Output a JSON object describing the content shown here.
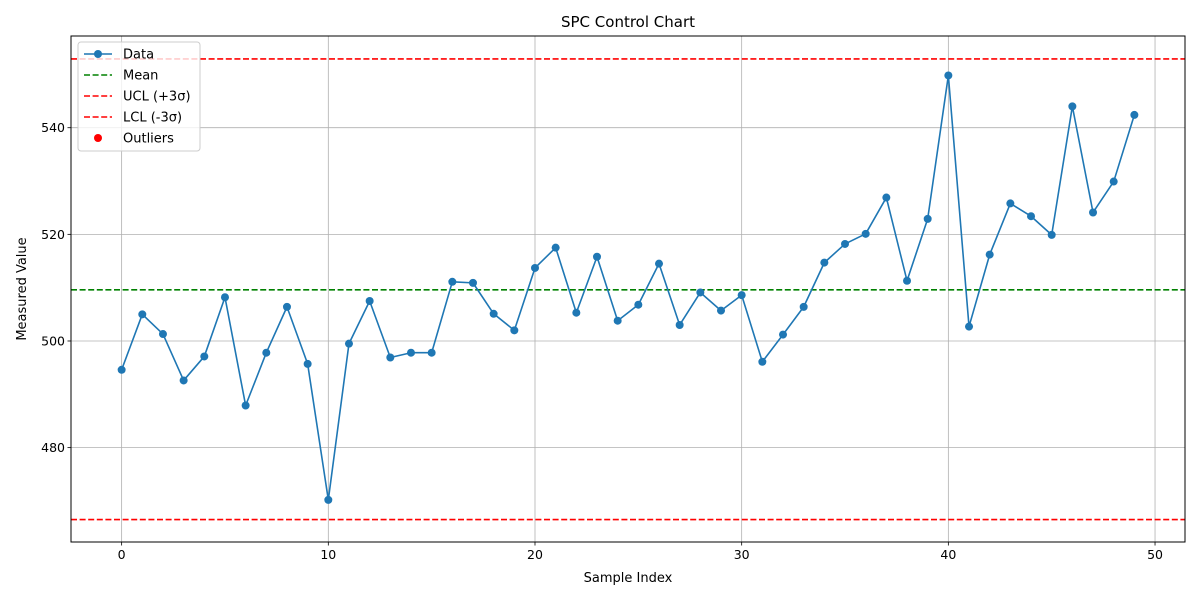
{
  "chart_data": {
    "type": "line",
    "title": "SPC Control Chart",
    "xlabel": "Sample Index",
    "ylabel": "Measured Value",
    "xlim": [
      -2.45,
      51.45
    ],
    "ylim": [
      462.3,
      557.2
    ],
    "xticks": [
      0,
      10,
      20,
      30,
      40,
      50
    ],
    "yticks": [
      480,
      500,
      520,
      540
    ],
    "grid": true,
    "legend_position": "top-left",
    "series": [
      {
        "name": "Data",
        "type": "line-marker",
        "color": "#1f77b4",
        "x": [
          0,
          1,
          2,
          3,
          4,
          5,
          6,
          7,
          8,
          9,
          10,
          11,
          12,
          13,
          14,
          15,
          16,
          17,
          18,
          19,
          20,
          21,
          22,
          23,
          24,
          25,
          26,
          27,
          28,
          29,
          30,
          31,
          32,
          33,
          34,
          35,
          36,
          37,
          38,
          39,
          40,
          41,
          42,
          43,
          44,
          45,
          46,
          47,
          48,
          49
        ],
        "values": [
          494.6,
          505.0,
          501.3,
          492.6,
          497.1,
          508.2,
          487.9,
          497.8,
          506.4,
          495.7,
          470.2,
          499.5,
          507.5,
          496.9,
          497.8,
          497.8,
          511.1,
          510.9,
          505.1,
          502.0,
          513.7,
          517.5,
          505.3,
          515.8,
          503.8,
          506.8,
          514.5,
          503.0,
          509.1,
          505.7,
          508.6,
          496.1,
          501.2,
          506.4,
          514.7,
          518.2,
          520.1,
          526.9,
          511.3,
          522.9,
          549.8,
          502.7,
          516.2,
          525.8,
          523.4,
          519.9,
          544.0,
          524.1,
          529.9,
          542.4
        ]
      },
      {
        "name": "Mean",
        "type": "hline",
        "color": "#008000",
        "value": 509.6
      },
      {
        "name": "UCL (+3σ)",
        "type": "hline",
        "color": "#ff0000",
        "value": 552.9
      },
      {
        "name": "LCL (-3σ)",
        "type": "hline",
        "color": "#ff0000",
        "value": 466.5
      },
      {
        "name": "Outliers",
        "type": "scatter",
        "color": "#ff0000",
        "x": [],
        "values": []
      }
    ]
  }
}
